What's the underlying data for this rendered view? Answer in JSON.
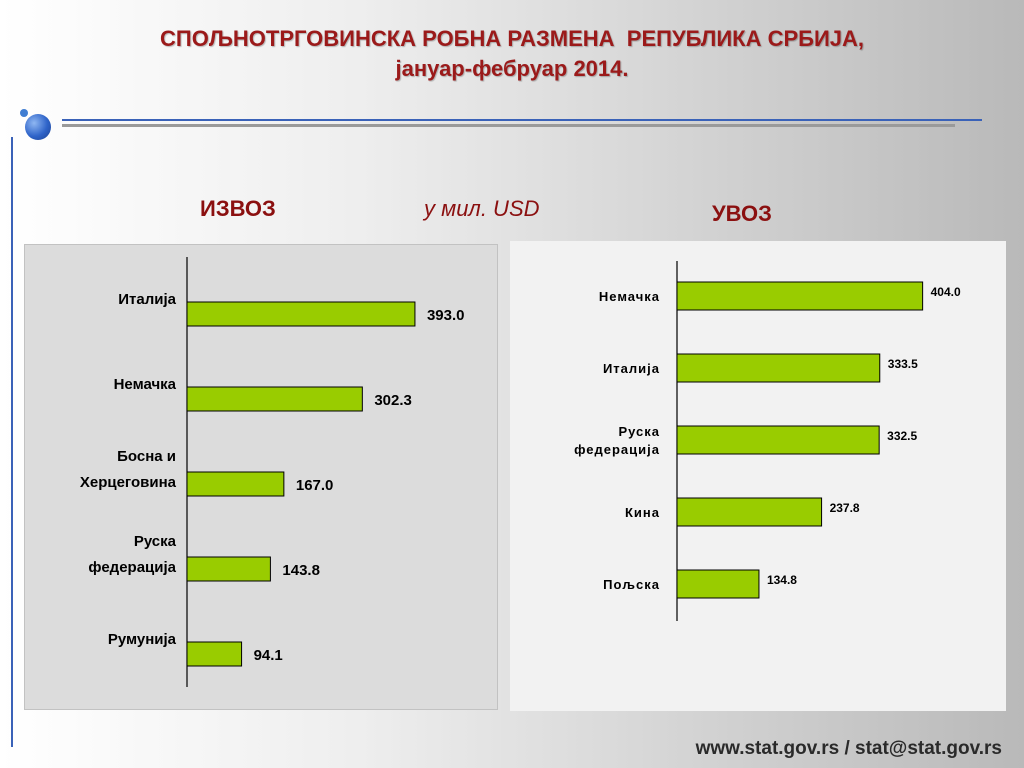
{
  "title": {
    "line1": "СПОЉНОТРГОВИНСКА РОБНА РАЗМЕНА  РЕПУБЛИКА СРБИЈА,",
    "line2": "јануар-фебруар 2014."
  },
  "unit_label": "у  мил. USD",
  "footer": "www.stat.gov.rs / stat@stat.gov.rs",
  "colors": {
    "bar": "#99cc00",
    "title": "#9b1a1a",
    "accent_blue": "#3a62b8"
  },
  "chart_data": [
    {
      "type": "bar",
      "orientation": "horizontal",
      "title": "ИЗВОЗ",
      "categories": [
        [
          "Италија"
        ],
        [
          "Немачка"
        ],
        [
          "Босна и",
          "Херцеговина"
        ],
        [
          "Руска",
          "федерација"
        ],
        [
          "Румунија"
        ]
      ],
      "values": [
        393.0,
        302.3,
        167.0,
        143.8,
        94.1
      ],
      "value_labels": [
        "393.0",
        "302.3",
        "167.0",
        "143.8",
        "94.1"
      ],
      "xlim": [
        0,
        500
      ]
    },
    {
      "type": "bar",
      "orientation": "horizontal",
      "title": "УВОЗ",
      "categories": [
        [
          "Немачка"
        ],
        [
          "Италија"
        ],
        [
          "Руска",
          "федерација"
        ],
        [
          "Кина"
        ],
        [
          "Пољска"
        ]
      ],
      "values": [
        404.0,
        333.5,
        332.5,
        237.8,
        134.8
      ],
      "value_labels": [
        "404.0",
        "333.5",
        "332.5",
        "237.8",
        "134.8"
      ],
      "xlim": [
        0,
        500
      ]
    }
  ]
}
